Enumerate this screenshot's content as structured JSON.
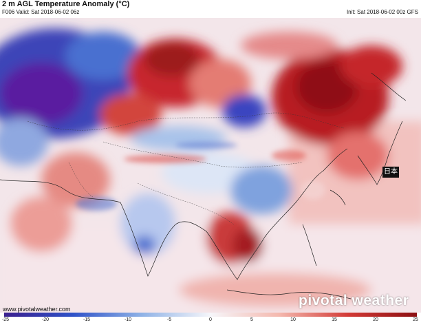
{
  "header": {
    "title": "2 m AGL Temperature Anomaly (°C)",
    "valid": "F006 Valid: Sat 2018-06-02 06z",
    "init": "Init: Sat 2018-06-02 00z GFS"
  },
  "map": {
    "country_label": "日本",
    "website": "www.pivotalweather.com",
    "watermark": "pivotal weather"
  },
  "colors": {
    "cold_deep": "#3b1f8e",
    "cold": "#2f52c8",
    "cool": "#8fb2e6",
    "neutral": "#f6f6fa",
    "warm": "#f4b8ae",
    "hot": "#d33a36",
    "hot_deep": "#8c0f12"
  },
  "colorbar": {
    "ticks": [
      "-25",
      "-20",
      "-15",
      "-10",
      "-5",
      "0",
      "5",
      "10",
      "15",
      "20",
      "25"
    ]
  }
}
